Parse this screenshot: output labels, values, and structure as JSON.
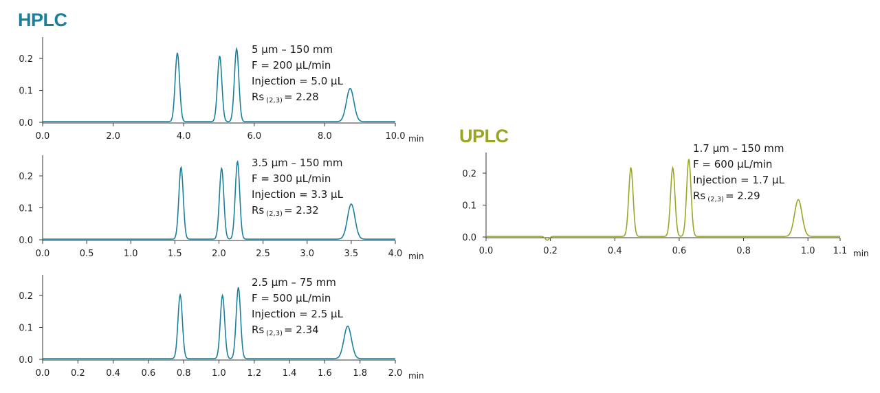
{
  "hplc": {
    "heading": "HPLC",
    "color": "#1a7f9c",
    "charts": [
      {
        "annotation": {
          "particle": "5 µm – 150 mm",
          "flow": "F = 200 µL/min",
          "injection": "Injection = 5.0 µL",
          "rs_prefix": "Rs",
          "rs_sub": "(2,3)",
          "rs_value": "= 2.28"
        }
      },
      {
        "annotation": {
          "particle": "3.5 µm – 150 mm",
          "flow": "F = 300 µL/min",
          "injection": "Injection = 3.3 µL",
          "rs_prefix": "Rs",
          "rs_sub": "(2,3)",
          "rs_value": "= 2.32"
        }
      },
      {
        "annotation": {
          "particle": "2.5 µm – 75 mm",
          "flow": "F = 500 µL/min",
          "injection": "Injection = 2.5 µL",
          "rs_prefix": "Rs",
          "rs_sub": "(2,3)",
          "rs_value": "= 2.34"
        }
      }
    ]
  },
  "uplc": {
    "heading": "UPLC",
    "color": "#9aa524",
    "annotation": {
      "particle": "1.7 µm – 150 mm",
      "flow": "F = 600 µL/min",
      "injection": "Injection = 1.7 µL",
      "rs_prefix": "Rs",
      "rs_sub": "(2,3)",
      "rs_value": "= 2.29"
    }
  },
  "chart_data": [
    {
      "type": "line",
      "title": "",
      "xlabel": "min",
      "ylabel": "",
      "xlim": [
        0,
        10.0
      ],
      "ylim": [
        0,
        0.25
      ],
      "xticks": [
        "0.0",
        "2.0",
        "4.0",
        "6.0",
        "8.0",
        "10.0"
      ],
      "yticks": [
        "0.0",
        "0.1",
        "0.2"
      ],
      "color": "#1a7f9c",
      "peaks": [
        {
          "rt": 3.82,
          "height": 0.215
        },
        {
          "rt": 5.02,
          "height": 0.205
        },
        {
          "rt": 5.5,
          "height": 0.228
        },
        {
          "rt": 8.72,
          "height": 0.104
        }
      ]
    },
    {
      "type": "line",
      "title": "",
      "xlabel": "min",
      "ylabel": "",
      "xlim": [
        0,
        4.0
      ],
      "ylim": [
        0,
        0.25
      ],
      "xticks": [
        "0.0",
        "0.5",
        "1.0",
        "1.5",
        "2.0",
        "2.5",
        "3.0",
        "3.5",
        "4.0"
      ],
      "yticks": [
        "0.0",
        "0.1",
        "0.2"
      ],
      "color": "#1a7f9c",
      "peaks": [
        {
          "rt": 1.57,
          "height": 0.225
        },
        {
          "rt": 2.03,
          "height": 0.222
        },
        {
          "rt": 2.21,
          "height": 0.243
        },
        {
          "rt": 3.5,
          "height": 0.11
        }
      ]
    },
    {
      "type": "line",
      "title": "",
      "xlabel": "min",
      "ylabel": "",
      "xlim": [
        0,
        2.0
      ],
      "ylim": [
        0,
        0.25
      ],
      "xticks": [
        "0.0",
        "0.2",
        "0.4",
        "0.6",
        "0.8",
        "1.0",
        "1.2",
        "1.4",
        "1.6",
        "1.8",
        "2.0"
      ],
      "yticks": [
        "0.0",
        "0.1",
        "0.2"
      ],
      "color": "#1a7f9c",
      "peaks": [
        {
          "rt": 0.78,
          "height": 0.2
        },
        {
          "rt": 1.02,
          "height": 0.198
        },
        {
          "rt": 1.11,
          "height": 0.223
        },
        {
          "rt": 1.73,
          "height": 0.102
        }
      ]
    },
    {
      "type": "line",
      "title": "",
      "xlabel": "min",
      "ylabel": "",
      "xlim": [
        0,
        1.1
      ],
      "ylim": [
        0,
        0.25
      ],
      "xticks": [
        "0.0",
        "0.2",
        "0.4",
        "0.6",
        "0.8",
        "1.0",
        "1.1"
      ],
      "yticks": [
        "0.0",
        "0.1",
        "0.2"
      ],
      "color": "#9aa524",
      "peaks": [
        {
          "rt": 0.45,
          "height": 0.215
        },
        {
          "rt": 0.58,
          "height": 0.215
        },
        {
          "rt": 0.63,
          "height": 0.242
        },
        {
          "rt": 0.97,
          "height": 0.115
        }
      ],
      "dips": [
        {
          "rt": 0.19,
          "depth": 0.012
        }
      ]
    }
  ]
}
